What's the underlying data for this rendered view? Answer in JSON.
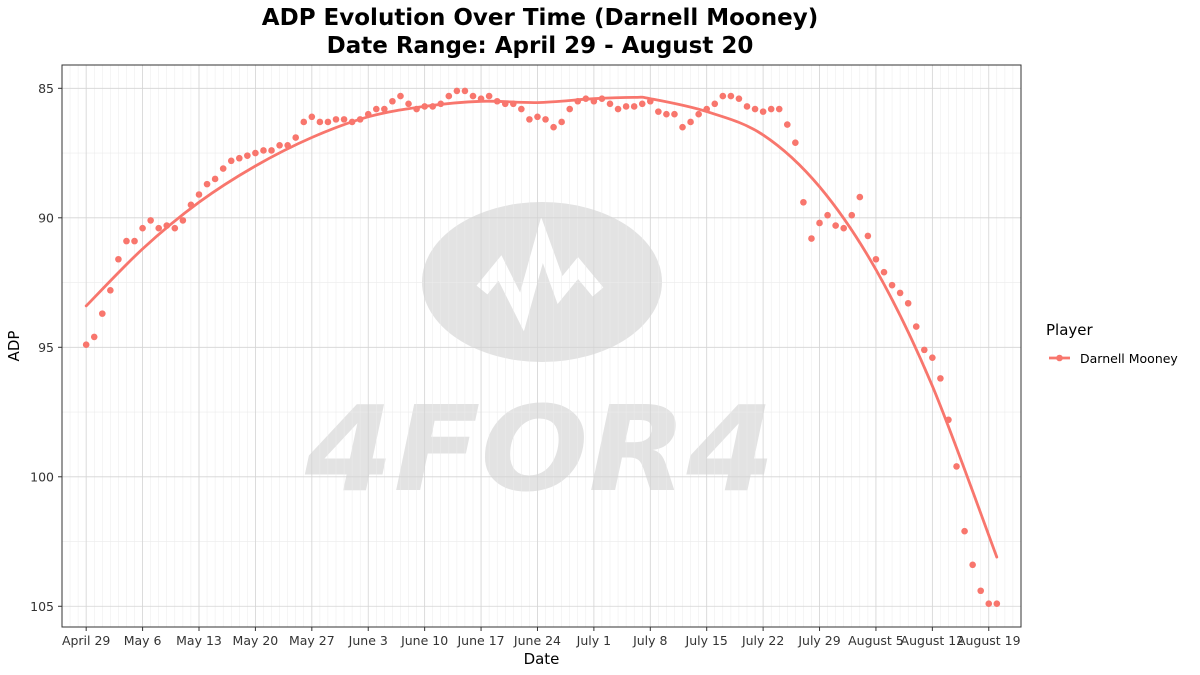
{
  "title_lines": [
    "ADP Evolution Over Time (Darnell Mooney)",
    "Date Range: April 29 - August 20"
  ],
  "watermark": {
    "text": "4FOR4",
    "icon": "football-logo"
  },
  "legend": {
    "title": "Player",
    "position": "right"
  },
  "colors": {
    "series": "#F8766D",
    "grid_major": "#d4d4d4",
    "grid_minor": "#ebebeb",
    "watermark": "#e3e3e3"
  },
  "chart_data": {
    "type": "scatter",
    "title": "ADP Evolution Over Time (Darnell Mooney)",
    "subtitle": "Date Range: April 29 - August 20",
    "xlabel": "Date",
    "ylabel": "ADP",
    "x_range": [
      "2024-04-26",
      "2024-08-23"
    ],
    "ylim": [
      85,
      105
    ],
    "y_reversed": true,
    "grid": true,
    "legend_position": "right",
    "x_ticks": [
      {
        "date": "2024-04-29",
        "label": "April 29"
      },
      {
        "date": "2024-05-06",
        "label": "May  6"
      },
      {
        "date": "2024-05-13",
        "label": "May 13"
      },
      {
        "date": "2024-05-20",
        "label": "May 20"
      },
      {
        "date": "2024-05-27",
        "label": "May 27"
      },
      {
        "date": "2024-06-03",
        "label": "June  3"
      },
      {
        "date": "2024-06-10",
        "label": "June 10"
      },
      {
        "date": "2024-06-17",
        "label": "June 17"
      },
      {
        "date": "2024-06-24",
        "label": "June 24"
      },
      {
        "date": "2024-07-01",
        "label": "July  1"
      },
      {
        "date": "2024-07-08",
        "label": "July  8"
      },
      {
        "date": "2024-07-15",
        "label": "July 15"
      },
      {
        "date": "2024-07-22",
        "label": "July 22"
      },
      {
        "date": "2024-07-29",
        "label": "July 29"
      },
      {
        "date": "2024-08-05",
        "label": "August  5"
      },
      {
        "date": "2024-08-12",
        "label": "August 12"
      },
      {
        "date": "2024-08-19",
        "label": "August 19"
      }
    ],
    "y_ticks": [
      85,
      90,
      95,
      100,
      105
    ],
    "series": [
      {
        "name": "Darnell Mooney",
        "color": "#F8766D",
        "points": [
          {
            "x": "2024-04-29",
            "y": 94.9
          },
          {
            "x": "2024-04-30",
            "y": 94.6
          },
          {
            "x": "2024-05-01",
            "y": 93.7
          },
          {
            "x": "2024-05-02",
            "y": 92.8
          },
          {
            "x": "2024-05-03",
            "y": 91.6
          },
          {
            "x": "2024-05-04",
            "y": 90.9
          },
          {
            "x": "2024-05-05",
            "y": 90.9
          },
          {
            "x": "2024-05-06",
            "y": 90.4
          },
          {
            "x": "2024-05-07",
            "y": 90.1
          },
          {
            "x": "2024-05-08",
            "y": 90.4
          },
          {
            "x": "2024-05-09",
            "y": 90.3
          },
          {
            "x": "2024-05-10",
            "y": 90.4
          },
          {
            "x": "2024-05-11",
            "y": 90.1
          },
          {
            "x": "2024-05-12",
            "y": 89.5
          },
          {
            "x": "2024-05-13",
            "y": 89.1
          },
          {
            "x": "2024-05-14",
            "y": 88.7
          },
          {
            "x": "2024-05-15",
            "y": 88.5
          },
          {
            "x": "2024-05-16",
            "y": 88.1
          },
          {
            "x": "2024-05-17",
            "y": 87.8
          },
          {
            "x": "2024-05-18",
            "y": 87.7
          },
          {
            "x": "2024-05-19",
            "y": 87.6
          },
          {
            "x": "2024-05-20",
            "y": 87.5
          },
          {
            "x": "2024-05-21",
            "y": 87.4
          },
          {
            "x": "2024-05-22",
            "y": 87.4
          },
          {
            "x": "2024-05-23",
            "y": 87.2
          },
          {
            "x": "2024-05-24",
            "y": 87.2
          },
          {
            "x": "2024-05-25",
            "y": 86.9
          },
          {
            "x": "2024-05-26",
            "y": 86.3
          },
          {
            "x": "2024-05-27",
            "y": 86.1
          },
          {
            "x": "2024-05-28",
            "y": 86.3
          },
          {
            "x": "2024-05-29",
            "y": 86.3
          },
          {
            "x": "2024-05-30",
            "y": 86.2
          },
          {
            "x": "2024-05-31",
            "y": 86.2
          },
          {
            "x": "2024-06-01",
            "y": 86.3
          },
          {
            "x": "2024-06-02",
            "y": 86.2
          },
          {
            "x": "2024-06-03",
            "y": 86.0
          },
          {
            "x": "2024-06-04",
            "y": 85.8
          },
          {
            "x": "2024-06-05",
            "y": 85.8
          },
          {
            "x": "2024-06-06",
            "y": 85.5
          },
          {
            "x": "2024-06-07",
            "y": 85.3
          },
          {
            "x": "2024-06-08",
            "y": 85.6
          },
          {
            "x": "2024-06-09",
            "y": 85.8
          },
          {
            "x": "2024-06-10",
            "y": 85.7
          },
          {
            "x": "2024-06-11",
            "y": 85.7
          },
          {
            "x": "2024-06-12",
            "y": 85.6
          },
          {
            "x": "2024-06-13",
            "y": 85.3
          },
          {
            "x": "2024-06-14",
            "y": 85.1
          },
          {
            "x": "2024-06-15",
            "y": 85.1
          },
          {
            "x": "2024-06-16",
            "y": 85.3
          },
          {
            "x": "2024-06-17",
            "y": 85.4
          },
          {
            "x": "2024-06-18",
            "y": 85.3
          },
          {
            "x": "2024-06-19",
            "y": 85.5
          },
          {
            "x": "2024-06-20",
            "y": 85.6
          },
          {
            "x": "2024-06-21",
            "y": 85.6
          },
          {
            "x": "2024-06-22",
            "y": 85.8
          },
          {
            "x": "2024-06-23",
            "y": 86.2
          },
          {
            "x": "2024-06-24",
            "y": 86.1
          },
          {
            "x": "2024-06-25",
            "y": 86.2
          },
          {
            "x": "2024-06-26",
            "y": 86.5
          },
          {
            "x": "2024-06-27",
            "y": 86.3
          },
          {
            "x": "2024-06-28",
            "y": 85.8
          },
          {
            "x": "2024-06-29",
            "y": 85.5
          },
          {
            "x": "2024-06-30",
            "y": 85.4
          },
          {
            "x": "2024-07-01",
            "y": 85.5
          },
          {
            "x": "2024-07-02",
            "y": 85.4
          },
          {
            "x": "2024-07-03",
            "y": 85.6
          },
          {
            "x": "2024-07-04",
            "y": 85.8
          },
          {
            "x": "2024-07-05",
            "y": 85.7
          },
          {
            "x": "2024-07-06",
            "y": 85.7
          },
          {
            "x": "2024-07-07",
            "y": 85.6
          },
          {
            "x": "2024-07-08",
            "y": 85.5
          },
          {
            "x": "2024-07-09",
            "y": 85.9
          },
          {
            "x": "2024-07-10",
            "y": 86.0
          },
          {
            "x": "2024-07-11",
            "y": 86.0
          },
          {
            "x": "2024-07-12",
            "y": 86.5
          },
          {
            "x": "2024-07-13",
            "y": 86.3
          },
          {
            "x": "2024-07-14",
            "y": 86.0
          },
          {
            "x": "2024-07-15",
            "y": 85.8
          },
          {
            "x": "2024-07-16",
            "y": 85.6
          },
          {
            "x": "2024-07-17",
            "y": 85.3
          },
          {
            "x": "2024-07-18",
            "y": 85.3
          },
          {
            "x": "2024-07-19",
            "y": 85.4
          },
          {
            "x": "2024-07-20",
            "y": 85.7
          },
          {
            "x": "2024-07-21",
            "y": 85.8
          },
          {
            "x": "2024-07-22",
            "y": 85.9
          },
          {
            "x": "2024-07-23",
            "y": 85.8
          },
          {
            "x": "2024-07-24",
            "y": 85.8
          },
          {
            "x": "2024-07-25",
            "y": 86.4
          },
          {
            "x": "2024-07-26",
            "y": 87.1
          },
          {
            "x": "2024-07-27",
            "y": 89.4
          },
          {
            "x": "2024-07-28",
            "y": 90.8
          },
          {
            "x": "2024-07-29",
            "y": 90.2
          },
          {
            "x": "2024-07-30",
            "y": 89.9
          },
          {
            "x": "2024-07-31",
            "y": 90.3
          },
          {
            "x": "2024-08-01",
            "y": 90.4
          },
          {
            "x": "2024-08-02",
            "y": 89.9
          },
          {
            "x": "2024-08-03",
            "y": 89.2
          },
          {
            "x": "2024-08-04",
            "y": 90.7
          },
          {
            "x": "2024-08-05",
            "y": 91.6
          },
          {
            "x": "2024-08-06",
            "y": 92.1
          },
          {
            "x": "2024-08-07",
            "y": 92.6
          },
          {
            "x": "2024-08-08",
            "y": 92.9
          },
          {
            "x": "2024-08-09",
            "y": 93.3
          },
          {
            "x": "2024-08-10",
            "y": 94.2
          },
          {
            "x": "2024-08-11",
            "y": 95.1
          },
          {
            "x": "2024-08-12",
            "y": 95.4
          },
          {
            "x": "2024-08-13",
            "y": 96.2
          },
          {
            "x": "2024-08-14",
            "y": 97.8
          },
          {
            "x": "2024-08-15",
            "y": 99.6
          },
          {
            "x": "2024-08-16",
            "y": 102.1
          },
          {
            "x": "2024-08-17",
            "y": 103.4
          },
          {
            "x": "2024-08-18",
            "y": 104.4
          },
          {
            "x": "2024-08-19",
            "y": 104.9
          },
          {
            "x": "2024-08-20",
            "y": 104.9
          }
        ],
        "smooth": [
          {
            "x": "2024-04-29",
            "y": 93.4
          },
          {
            "x": "2024-05-06",
            "y": 91.2
          },
          {
            "x": "2024-05-13",
            "y": 89.4
          },
          {
            "x": "2024-05-20",
            "y": 88.0
          },
          {
            "x": "2024-05-27",
            "y": 86.9
          },
          {
            "x": "2024-06-03",
            "y": 86.1
          },
          {
            "x": "2024-06-10",
            "y": 85.7
          },
          {
            "x": "2024-06-17",
            "y": 85.5
          },
          {
            "x": "2024-06-24",
            "y": 85.55
          },
          {
            "x": "2024-07-01",
            "y": 85.4
          },
          {
            "x": "2024-07-06",
            "y": 85.35
          },
          {
            "x": "2024-07-08",
            "y": 85.4
          },
          {
            "x": "2024-07-15",
            "y": 85.9
          },
          {
            "x": "2024-07-22",
            "y": 86.8
          },
          {
            "x": "2024-07-29",
            "y": 88.8
          },
          {
            "x": "2024-08-05",
            "y": 92.0
          },
          {
            "x": "2024-08-12",
            "y": 96.5
          },
          {
            "x": "2024-08-20",
            "y": 103.1
          }
        ]
      }
    ]
  }
}
